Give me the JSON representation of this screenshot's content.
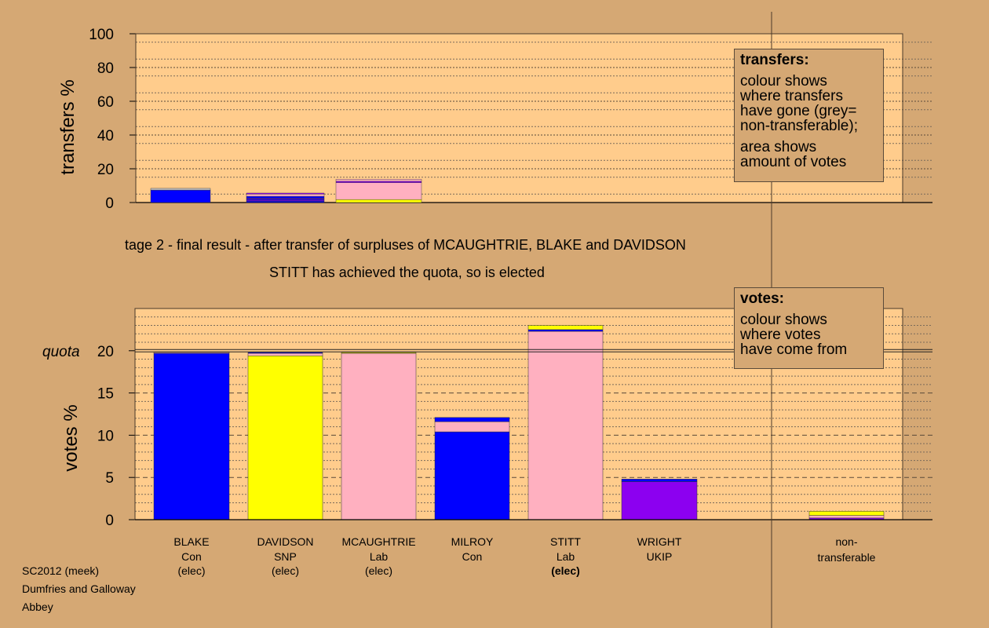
{
  "subtitle": "tage 2 - final result - after transfer of surpluses of MCAUGHTRIE, BLAKE and DAVIDSON",
  "elected_note": "STITT has achieved the quota, so is elected",
  "footer": [
    "SC2012 (meek)",
    "Dumfries and Galloway",
    "Abbey"
  ],
  "legend_transfers": {
    "title": "transfers:",
    "lines_1": [
      "colour shows",
      "where transfers",
      "have gone (grey=",
      "non-transferable);"
    ],
    "lines_2": [
      "area shows",
      "amount of votes"
    ]
  },
  "legend_votes": {
    "title": "votes:",
    "lines_1": [
      "colour shows",
      "where votes",
      "have come from"
    ]
  },
  "colors": {
    "background": "#d5a874",
    "plot_bg": "#ffcc8c",
    "Con": "#0000ff",
    "SNP": "#ffff00",
    "Lab": "#ffb0c0",
    "UKIP": "#8c00f0",
    "nontransferable": "#c0c0c0"
  },
  "chart_data": [
    {
      "type": "bar",
      "ylabel": "transfers %",
      "ylim": [
        0,
        100
      ],
      "yticks": [
        0,
        20,
        40,
        60,
        80,
        100
      ],
      "bars": [
        {
          "segments": [
            {
              "color": "#0000ff",
              "value": 7.4
            },
            {
              "color": "#c0c0c0",
              "value": 1.0
            }
          ]
        },
        {
          "segments": [
            {
              "color": "#0000ff",
              "value": 0.8
            },
            {
              "color": "#8c00f0",
              "value": 0.6
            },
            {
              "color": "#0000ff",
              "value": 0.6
            },
            {
              "color": "#8c00f0",
              "value": 0.5
            },
            {
              "color": "#0000ff",
              "value": 1.2
            },
            {
              "color": "#ffb0c0",
              "value": 1.3
            },
            {
              "color": "#8c00f0",
              "value": 0.6
            }
          ]
        },
        {
          "segments": [
            {
              "color": "#ffff00",
              "value": 1.8
            },
            {
              "color": "#ffb0c0",
              "value": 10.0
            },
            {
              "color": "#8c00f0",
              "value": 0.8
            },
            {
              "color": "#ffb0c0",
              "value": 1.2
            }
          ]
        }
      ]
    },
    {
      "type": "bar",
      "ylabel": "votes %",
      "quota_label": "quota",
      "quota": 20,
      "ylim": [
        0,
        25
      ],
      "yticks": [
        0,
        5,
        10,
        15,
        20
      ],
      "candidates": [
        {
          "name": "BLAKE",
          "party": "Con",
          "status": "(elec)",
          "bold_status": false
        },
        {
          "name": "DAVIDSON",
          "party": "SNP",
          "status": "(elec)",
          "bold_status": false
        },
        {
          "name": "MCAUGHTRIE",
          "party": "Lab",
          "status": "(elec)",
          "bold_status": false
        },
        {
          "name": "MILROY",
          "party": "Con",
          "status": "",
          "bold_status": false
        },
        {
          "name": "STITT",
          "party": "Lab",
          "status": "(elec)",
          "bold_status": true
        },
        {
          "name": "WRIGHT",
          "party": "UKIP",
          "status": "",
          "bold_status": false
        }
      ],
      "nontransferable_label": [
        "non-",
        "transferable"
      ],
      "bars": [
        {
          "segments": [
            {
              "color": "#0000ff",
              "value": 19.7
            },
            {
              "color": "#ffb0c0",
              "value": 0.1
            }
          ]
        },
        {
          "segments": [
            {
              "color": "#ffff00",
              "value": 19.4
            },
            {
              "color": "#ffb0c0",
              "value": 0.3
            },
            {
              "color": "#0000ff",
              "value": 0.1
            }
          ]
        },
        {
          "segments": [
            {
              "color": "#ffb0c0",
              "value": 19.7
            },
            {
              "color": "#ffff00",
              "value": 0.1
            }
          ]
        },
        {
          "segments": [
            {
              "color": "#0000ff",
              "value": 10.4
            },
            {
              "color": "#ffb0c0",
              "value": 1.2
            },
            {
              "color": "#0000ff",
              "value": 0.5
            }
          ]
        },
        {
          "segments": [
            {
              "color": "#ffb0c0",
              "value": 22.3
            },
            {
              "color": "#0000ff",
              "value": 0.2
            },
            {
              "color": "#ffff00",
              "value": 0.5
            }
          ]
        },
        {
          "segments": [
            {
              "color": "#8c00f0",
              "value": 4.5
            },
            {
              "color": "#0000ff",
              "value": 0.3
            }
          ]
        },
        {
          "segments": [
            {
              "color": "#8c00f0",
              "value": 0.2
            },
            {
              "color": "#ffb0c0",
              "value": 0.3
            },
            {
              "color": "#ffff00",
              "value": 0.5
            }
          ]
        }
      ]
    }
  ]
}
